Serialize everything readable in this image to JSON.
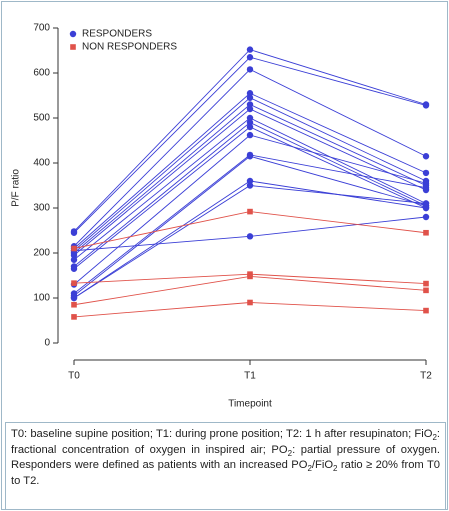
{
  "chart_data": {
    "type": "paired-line",
    "categories": [
      "T0",
      "T1",
      "T2"
    ],
    "x_label": "Timepoint",
    "y_label": "P/F ratio",
    "ylim": [
      -25,
      725
    ],
    "yticks": [
      0,
      100,
      200,
      300,
      400,
      500,
      600,
      700
    ],
    "legend": "top-left",
    "groups": [
      {
        "name": "RESPONDERS",
        "color": "#3b3fd6",
        "marker": "circle",
        "lines": [
          [
            248,
            652,
            530
          ],
          [
            245,
            635,
            528
          ],
          [
            215,
            608,
            415
          ],
          [
            210,
            555,
            378
          ],
          [
            205,
            545,
            360
          ],
          [
            200,
            530,
            350
          ],
          [
            195,
            520,
            340
          ],
          [
            185,
            500,
            310
          ],
          [
            170,
            490,
            305
          ],
          [
            165,
            480,
            300
          ],
          [
            130,
            462,
            355
          ],
          [
            110,
            418,
            345
          ],
          [
            105,
            415,
            305
          ],
          [
            100,
            360,
            300
          ],
          [
            100,
            350,
            310
          ],
          [
            205,
            237,
            280
          ]
        ]
      },
      {
        "name": "NON RESPONDERS",
        "color": "#e0524a",
        "marker": "square",
        "lines": [
          [
            210,
            292,
            245
          ],
          [
            133,
            153,
            132
          ],
          [
            85,
            148,
            117
          ],
          [
            58,
            90,
            72
          ]
        ]
      }
    ]
  },
  "caption": [
    {
      "text": "T0: baseline supine position; T1: during prone position; T2: 1 h after resupinaton; FiO"
    },
    {
      "sub": "2"
    },
    {
      "text": ": fractional concentration of oxygen in inspired air; PO"
    },
    {
      "sub": "2"
    },
    {
      "text": ": partial pressure of oxygen. Responders were defined as patients with an increased PO"
    },
    {
      "sub": "2"
    },
    {
      "text": "/FiO"
    },
    {
      "sub": "2"
    },
    {
      "text": " ratio ≥ 20% from T0 to T2."
    }
  ]
}
